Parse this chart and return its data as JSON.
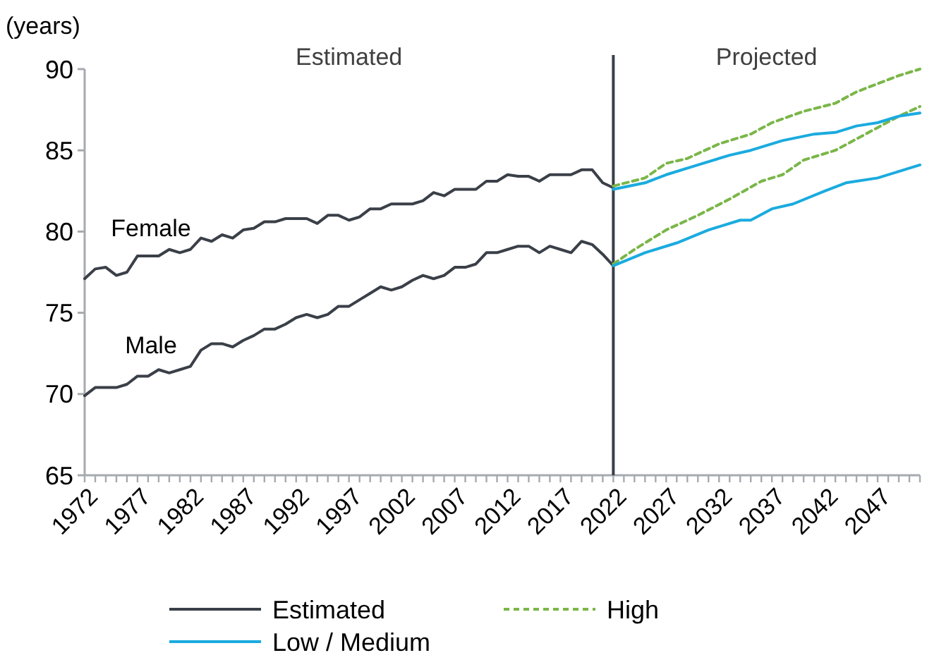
{
  "chart_data": {
    "type": "line",
    "ylabel": "(years)",
    "xlim": [
      1972,
      2051
    ],
    "ylim": [
      65,
      90
    ],
    "yticks": [
      65,
      70,
      75,
      80,
      85,
      90
    ],
    "xticks": [
      1972,
      {
        "value": 1973,
        "label": null
      },
      {
        "value": 1974,
        "label": null
      },
      {
        "value": 1975,
        "label": null
      },
      {
        "value": 1976,
        "label": null
      },
      1977,
      {
        "value": 1978,
        "label": null
      },
      {
        "value": 1979,
        "label": null
      },
      {
        "value": 1980,
        "label": null
      },
      {
        "value": 1981,
        "label": null
      },
      1982,
      {
        "value": 1983,
        "label": null
      },
      {
        "value": 1984,
        "label": null
      },
      {
        "value": 1985,
        "label": null
      },
      {
        "value": 1986,
        "label": null
      },
      1987,
      {
        "value": 1988,
        "label": null
      },
      {
        "value": 1989,
        "label": null
      },
      {
        "value": 1990,
        "label": null
      },
      {
        "value": 1991,
        "label": null
      },
      1992,
      {
        "value": 1993,
        "label": null
      },
      {
        "value": 1994,
        "label": null
      },
      {
        "value": 1995,
        "label": null
      },
      {
        "value": 1996,
        "label": null
      },
      1997,
      {
        "value": 1998,
        "label": null
      },
      {
        "value": 1999,
        "label": null
      },
      {
        "value": 2000,
        "label": null
      },
      {
        "value": 2001,
        "label": null
      },
      2002,
      {
        "value": 2003,
        "label": null
      },
      {
        "value": 2004,
        "label": null
      },
      {
        "value": 2005,
        "label": null
      },
      {
        "value": 2006,
        "label": null
      },
      2007,
      {
        "value": 2008,
        "label": null
      },
      {
        "value": 2009,
        "label": null
      },
      {
        "value": 2010,
        "label": null
      },
      {
        "value": 2011,
        "label": null
      },
      2012,
      {
        "value": 2013,
        "label": null
      },
      {
        "value": 2014,
        "label": null
      },
      {
        "value": 2015,
        "label": null
      },
      {
        "value": 2016,
        "label": null
      },
      2017,
      {
        "value": 2018,
        "label": null
      },
      {
        "value": 2019,
        "label": null
      },
      {
        "value": 2020,
        "label": null
      },
      {
        "value": 2021,
        "label": null
      },
      2022,
      {
        "value": 2023,
        "label": null
      },
      {
        "value": 2024,
        "label": null
      },
      {
        "value": 2025,
        "label": null
      },
      {
        "value": 2026,
        "label": null
      },
      2027,
      {
        "value": 2028,
        "label": null
      },
      {
        "value": 2029,
        "label": null
      },
      {
        "value": 2030,
        "label": null
      },
      {
        "value": 2031,
        "label": null
      },
      2032,
      {
        "value": 2033,
        "label": null
      },
      {
        "value": 2034,
        "label": null
      },
      {
        "value": 2035,
        "label": null
      },
      {
        "value": 2036,
        "label": null
      },
      2037,
      {
        "value": 2038,
        "label": null
      },
      {
        "value": 2039,
        "label": null
      },
      {
        "value": 2040,
        "label": null
      },
      {
        "value": 2041,
        "label": null
      },
      2042,
      {
        "value": 2043,
        "label": null
      },
      {
        "value": 2044,
        "label": null
      },
      {
        "value": 2045,
        "label": null
      },
      {
        "value": 2046,
        "label": null
      },
      2047,
      {
        "value": 2048,
        "label": null
      },
      {
        "value": 2049,
        "label": null
      },
      {
        "value": 2050,
        "label": null
      },
      {
        "value": 2051,
        "label": null
      }
    ],
    "grid": false,
    "legend": "bottom",
    "series": [
      {
        "name": "Estimated",
        "color": "#3a3f48",
        "line_style": "solid",
        "x": [
          1972,
          1973,
          1974,
          1975,
          1976,
          1977,
          1978,
          1979,
          1980,
          1981,
          1982,
          1983,
          1984,
          1985,
          1986,
          1987,
          1988,
          1989,
          1990,
          1991,
          1992,
          1993,
          1994,
          1995,
          1996,
          1997,
          1998,
          1999,
          2000,
          2001,
          2002,
          2003,
          2004,
          2005,
          2006,
          2007,
          2008,
          2009,
          2010,
          2011,
          2012,
          2013,
          2014,
          2015,
          2016,
          2017,
          2018,
          2019,
          2020,
          2021,
          2022
        ],
        "values": [
          77.1,
          77.7,
          77.8,
          77.3,
          77.5,
          78.5,
          78.5,
          78.5,
          78.9,
          78.7,
          78.9,
          79.6,
          79.4,
          79.8,
          79.6,
          80.1,
          80.2,
          80.6,
          80.6,
          80.8,
          80.8,
          80.8,
          80.5,
          81.0,
          81.0,
          80.7,
          80.9,
          81.4,
          81.4,
          81.7,
          81.7,
          81.7,
          81.9,
          82.4,
          82.2,
          82.6,
          82.6,
          82.6,
          83.1,
          83.1,
          83.5,
          83.4,
          83.4,
          83.1,
          83.5,
          83.5,
          83.5,
          83.8,
          83.8,
          83.0,
          82.7
        ]
      },
      {
        "color": "#3a3f48",
        "line_style": "solid",
        "x": [
          1972,
          1973,
          1974,
          1975,
          1976,
          1977,
          1978,
          1979,
          1980,
          1981,
          1982,
          1983,
          1984,
          1985,
          1986,
          1987,
          1988,
          1989,
          1990,
          1991,
          1992,
          1993,
          1994,
          1995,
          1996,
          1997,
          1998,
          1999,
          2000,
          2001,
          2002,
          2003,
          2004,
          2005,
          2006,
          2007,
          2008,
          2009,
          2010,
          2011,
          2012,
          2013,
          2014,
          2015,
          2016,
          2017,
          2018,
          2019,
          2020,
          2021,
          2022
        ],
        "values": [
          69.9,
          70.4,
          70.4,
          70.4,
          70.6,
          71.1,
          71.1,
          71.5,
          71.3,
          71.5,
          71.7,
          72.7,
          73.1,
          73.1,
          72.9,
          73.3,
          73.6,
          74.0,
          74.0,
          74.3,
          74.7,
          74.9,
          74.7,
          74.9,
          75.4,
          75.4,
          75.8,
          76.2,
          76.6,
          76.4,
          76.6,
          77.0,
          77.3,
          77.1,
          77.3,
          77.8,
          77.8,
          78.0,
          78.7,
          78.7,
          78.9,
          79.1,
          79.1,
          78.7,
          79.1,
          78.9,
          78.7,
          79.4,
          79.2,
          78.6,
          77.9
        ]
      },
      {
        "name": "High",
        "color": "#7ab648",
        "line_style": "dashed",
        "x": [
          2022,
          2025,
          2027,
          2029,
          2032,
          2035,
          2037,
          2040,
          2043,
          2045,
          2047,
          2049,
          2051
        ],
        "values": [
          82.8,
          83.3,
          84.2,
          84.5,
          85.4,
          86.0,
          86.7,
          87.4,
          87.9,
          88.6,
          89.1,
          89.6,
          90.0
        ]
      },
      {
        "color": "#7ab648",
        "line_style": "dashed",
        "x": [
          2022,
          2024,
          2027,
          2030,
          2033,
          2036,
          2038,
          2040,
          2043,
          2045,
          2047,
          2049,
          2051
        ],
        "values": [
          78.0,
          78.9,
          80.1,
          81.0,
          82.0,
          83.1,
          83.5,
          84.4,
          85.0,
          85.7,
          86.4,
          87.1,
          87.7
        ]
      },
      {
        "name": "Low / Medium",
        "color": "#1aabdf",
        "line_style": "solid",
        "x": [
          2022,
          2025,
          2027,
          2030,
          2033,
          2035,
          2038,
          2041,
          2043,
          2045,
          2047,
          2049,
          2051
        ],
        "values": [
          82.6,
          83.0,
          83.5,
          84.1,
          84.7,
          85.0,
          85.6,
          86.0,
          86.1,
          86.5,
          86.7,
          87.1,
          87.3
        ]
      },
      {
        "color": "#1aabdf",
        "line_style": "solid",
        "x": [
          2022,
          2025,
          2028,
          2031,
          2034,
          2035,
          2037,
          2039,
          2042,
          2044,
          2047,
          2049,
          2051
        ],
        "values": [
          77.9,
          78.7,
          79.3,
          80.1,
          80.7,
          80.7,
          81.4,
          81.7,
          82.5,
          83.0,
          83.3,
          83.7,
          84.1
        ]
      }
    ],
    "ref_lines": [
      {
        "axis": "x",
        "value": 2022,
        "color": "#3a3f48"
      }
    ],
    "annotations": [
      "Estimated",
      "Projected",
      "Female",
      "Male"
    ]
  }
}
